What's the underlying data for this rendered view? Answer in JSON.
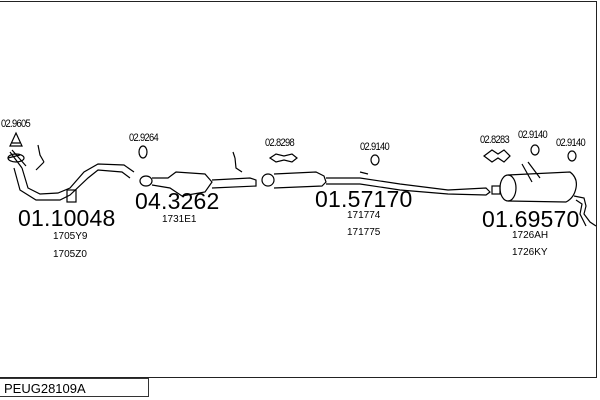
{
  "diagram_code": "PEUG28109A",
  "parts": [
    {
      "number": "01.10048",
      "refs": [
        "1705Y9",
        "1705Z0"
      ]
    },
    {
      "number": "04.3262",
      "refs": [
        "1731E1"
      ]
    },
    {
      "number": "01.57170",
      "refs": [
        "171774",
        "171775"
      ]
    },
    {
      "number": "01.69570",
      "refs": [
        "1726AH",
        "1726KY"
      ]
    }
  ],
  "accessories": [
    "02.9605",
    "02.9264",
    "02.8298",
    "02.9140",
    "02.8283",
    "02.9140",
    "02.9140"
  ]
}
